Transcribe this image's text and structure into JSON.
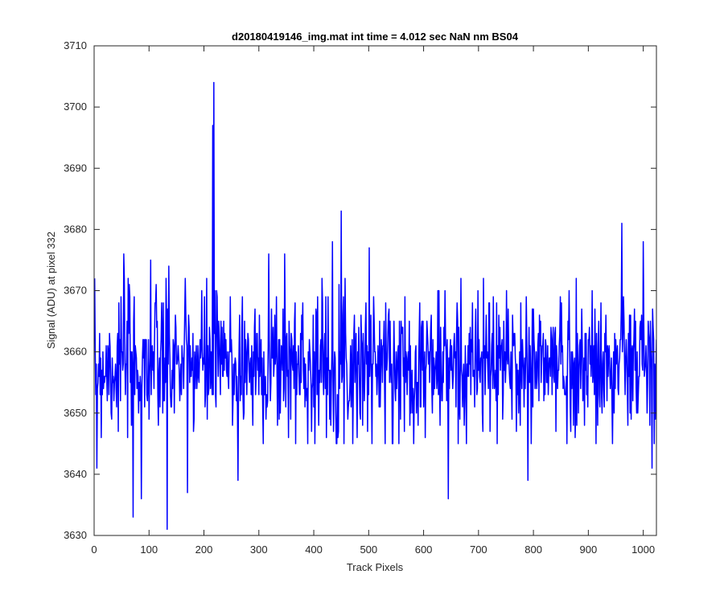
{
  "chart_data": {
    "type": "line",
    "title": "d20180419146_img.mat int time = 4.012 sec  NaN nm BS04",
    "xlabel": "Track Pixels",
    "ylabel": "Signal (ADU) at pixel 332",
    "xlim": [
      0,
      1024
    ],
    "ylim": [
      3630,
      3710
    ],
    "xticks": [
      0,
      100,
      200,
      300,
      400,
      500,
      600,
      700,
      800,
      900,
      1000
    ],
    "yticks": [
      3630,
      3640,
      3650,
      3660,
      3670,
      3680,
      3690,
      3700,
      3710
    ],
    "grid": false,
    "series_color": "#0000ff",
    "series": [
      {
        "x_start": 1,
        "x_step": 1,
        "summary": {
          "count": 1024,
          "typical_mean": 3658,
          "typical_min": 3645,
          "typical_max": 3672
        },
        "notable_points": [
          {
            "x": 5,
            "y": 3641
          },
          {
            "x": 54,
            "y": 3676
          },
          {
            "x": 71,
            "y": 3633
          },
          {
            "x": 86,
            "y": 3636
          },
          {
            "x": 103,
            "y": 3675
          },
          {
            "x": 133,
            "y": 3631
          },
          {
            "x": 136,
            "y": 3674
          },
          {
            "x": 170,
            "y": 3637
          },
          {
            "x": 216,
            "y": 3697
          },
          {
            "x": 218,
            "y": 3704
          },
          {
            "x": 262,
            "y": 3639
          },
          {
            "x": 318,
            "y": 3676
          },
          {
            "x": 347,
            "y": 3676
          },
          {
            "x": 434,
            "y": 3678
          },
          {
            "x": 450,
            "y": 3683
          },
          {
            "x": 501,
            "y": 3677
          },
          {
            "x": 645,
            "y": 3636
          },
          {
            "x": 790,
            "y": 3639
          },
          {
            "x": 961,
            "y": 3681
          },
          {
            "x": 1000,
            "y": 3678
          },
          {
            "x": 1016,
            "y": 3641
          }
        ]
      }
    ]
  }
}
